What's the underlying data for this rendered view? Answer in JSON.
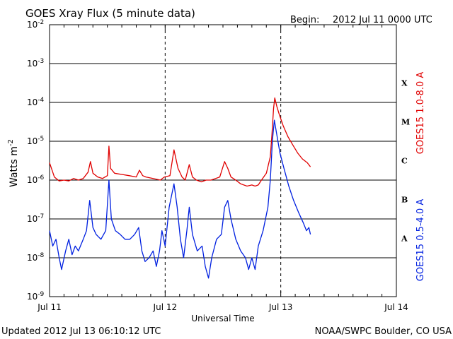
{
  "header": {
    "title": "GOES Xray Flux (5 minute data)",
    "begin_label": "Begin:",
    "begin_value": "2012 Jul 11 0000 UTC"
  },
  "footer": {
    "updated": "Updated 2012 Jul 13 06:10:12 UTC",
    "source": "NOAA/SWPC Boulder, CO USA"
  },
  "chart_data": {
    "type": "line",
    "title": "GOES Xray Flux (5 minute data)",
    "xlabel": "Universal Time",
    "ylabel": "Watts m",
    "ylabel_sup": "-2",
    "y_scale": "log",
    "ylim": [
      1e-09,
      0.01
    ],
    "xlim": [
      "2012-07-11T00:00",
      "2012-07-14T00:00"
    ],
    "grid": true,
    "x_ticks": [
      "Jul 11",
      "Jul 12",
      "Jul 13",
      "Jul 14"
    ],
    "y_ticks": [
      {
        "base": "10",
        "exp": "-9"
      },
      {
        "base": "10",
        "exp": "-8"
      },
      {
        "base": "10",
        "exp": "-7"
      },
      {
        "base": "10",
        "exp": "-6"
      },
      {
        "base": "10",
        "exp": "-5"
      },
      {
        "base": "10",
        "exp": "-4"
      },
      {
        "base": "10",
        "exp": "-3"
      },
      {
        "base": "10",
        "exp": "-2"
      }
    ],
    "flare_classes": [
      "X",
      "M",
      "C",
      "B",
      "A"
    ],
    "series": [
      {
        "name": "GOES15 1.0-8.0 A",
        "color": "#e00000",
        "points": [
          [
            "2012-07-11T00:00",
            2.8e-06
          ],
          [
            "2012-07-11T01:00",
            1.2e-06
          ],
          [
            "2012-07-11T02:00",
            9.5e-07
          ],
          [
            "2012-07-11T03:00",
            1e-06
          ],
          [
            "2012-07-11T04:00",
            9.5e-07
          ],
          [
            "2012-07-11T05:00",
            1.1e-06
          ],
          [
            "2012-07-11T06:00",
            1e-06
          ],
          [
            "2012-07-11T07:00",
            1.1e-06
          ],
          [
            "2012-07-11T08:00",
            1.6e-06
          ],
          [
            "2012-07-11T08:30",
            3e-06
          ],
          [
            "2012-07-11T09:00",
            1.5e-06
          ],
          [
            "2012-07-11T10:00",
            1.2e-06
          ],
          [
            "2012-07-11T11:00",
            1.1e-06
          ],
          [
            "2012-07-11T12:00",
            1.3e-06
          ],
          [
            "2012-07-11T12:20",
            7.5e-06
          ],
          [
            "2012-07-11T12:40",
            2e-06
          ],
          [
            "2012-07-11T13:30",
            1.5e-06
          ],
          [
            "2012-07-11T15:00",
            1.4e-06
          ],
          [
            "2012-07-11T16:30",
            1.3e-06
          ],
          [
            "2012-07-11T18:00",
            1.2e-06
          ],
          [
            "2012-07-11T18:40",
            1.8e-06
          ],
          [
            "2012-07-11T19:20",
            1.3e-06
          ],
          [
            "2012-07-11T20:00",
            1.2e-06
          ],
          [
            "2012-07-11T21:30",
            1.1e-06
          ],
          [
            "2012-07-11T23:00",
            1e-06
          ],
          [
            "2012-07-11T23:50",
            1.2e-06
          ],
          [
            "2012-07-12T01:00",
            1.3e-06
          ],
          [
            "2012-07-12T01:50",
            6e-06
          ],
          [
            "2012-07-12T02:40",
            2e-06
          ],
          [
            "2012-07-12T03:30",
            1.2e-06
          ],
          [
            "2012-07-12T04:10",
            1e-06
          ],
          [
            "2012-07-12T05:00",
            2.5e-06
          ],
          [
            "2012-07-12T05:40",
            1.2e-06
          ],
          [
            "2012-07-12T06:30",
            1e-06
          ],
          [
            "2012-07-12T07:30",
            9e-07
          ],
          [
            "2012-07-12T08:30",
            1e-06
          ],
          [
            "2012-07-12T09:30",
            1e-06
          ],
          [
            "2012-07-12T10:30",
            1.1e-06
          ],
          [
            "2012-07-12T11:20",
            1.2e-06
          ],
          [
            "2012-07-12T12:20",
            3e-06
          ],
          [
            "2012-07-12T13:00",
            2e-06
          ],
          [
            "2012-07-12T13:40",
            1.2e-06
          ],
          [
            "2012-07-12T14:40",
            1e-06
          ],
          [
            "2012-07-12T15:40",
            8e-07
          ],
          [
            "2012-07-12T17:00",
            7e-07
          ],
          [
            "2012-07-12T18:00",
            7.5e-07
          ],
          [
            "2012-07-12T18:40",
            7e-07
          ],
          [
            "2012-07-12T19:20",
            7.5e-07
          ],
          [
            "2012-07-12T20:00",
            1e-06
          ],
          [
            "2012-07-12T21:00",
            1.5e-06
          ],
          [
            "2012-07-12T21:50",
            4e-06
          ],
          [
            "2012-07-12T22:10",
            1.5e-05
          ],
          [
            "2012-07-12T22:30",
            7e-05
          ],
          [
            "2012-07-12T22:45",
            0.00013
          ],
          [
            "2012-07-12T23:10",
            8e-05
          ],
          [
            "2012-07-12T23:40",
            5e-05
          ],
          [
            "2012-07-13T00:30",
            2.5e-05
          ],
          [
            "2012-07-13T01:30",
            1.3e-05
          ],
          [
            "2012-07-13T02:30",
            8e-06
          ],
          [
            "2012-07-13T03:30",
            5e-06
          ],
          [
            "2012-07-13T04:30",
            3.5e-06
          ],
          [
            "2012-07-13T05:30",
            2.8e-06
          ],
          [
            "2012-07-13T06:10",
            2.2e-06
          ]
        ]
      },
      {
        "name": "GOES15 0.5-4.0 A",
        "color": "#0020e0",
        "points": [
          [
            "2012-07-11T00:00",
            5e-08
          ],
          [
            "2012-07-11T00:40",
            2e-08
          ],
          [
            "2012-07-11T01:20",
            3e-08
          ],
          [
            "2012-07-11T02:00",
            1e-08
          ],
          [
            "2012-07-11T02:30",
            5e-09
          ],
          [
            "2012-07-11T03:20",
            1.5e-08
          ],
          [
            "2012-07-11T04:00",
            3e-08
          ],
          [
            "2012-07-11T04:40",
            1.2e-08
          ],
          [
            "2012-07-11T05:20",
            2e-08
          ],
          [
            "2012-07-11T06:00",
            1.5e-08
          ],
          [
            "2012-07-11T07:00",
            3e-08
          ],
          [
            "2012-07-11T07:40",
            5e-08
          ],
          [
            "2012-07-11T08:20",
            3e-07
          ],
          [
            "2012-07-11T09:00",
            6e-08
          ],
          [
            "2012-07-11T09:40",
            4e-08
          ],
          [
            "2012-07-11T10:40",
            3e-08
          ],
          [
            "2012-07-11T11:40",
            5e-08
          ],
          [
            "2012-07-11T12:20",
            1e-06
          ],
          [
            "2012-07-11T12:50",
            1e-07
          ],
          [
            "2012-07-11T13:40",
            5e-08
          ],
          [
            "2012-07-11T14:40",
            4e-08
          ],
          [
            "2012-07-11T15:40",
            3e-08
          ],
          [
            "2012-07-11T16:40",
            3e-08
          ],
          [
            "2012-07-11T17:40",
            4e-08
          ],
          [
            "2012-07-11T18:30",
            6e-08
          ],
          [
            "2012-07-11T19:10",
            1.5e-08
          ],
          [
            "2012-07-11T19:50",
            8e-09
          ],
          [
            "2012-07-11T20:40",
            1e-08
          ],
          [
            "2012-07-11T21:30",
            1.5e-08
          ],
          [
            "2012-07-11T22:10",
            6e-09
          ],
          [
            "2012-07-11T22:50",
            1.5e-08
          ],
          [
            "2012-07-11T23:20",
            5e-08
          ],
          [
            "2012-07-12T00:00",
            2e-08
          ],
          [
            "2012-07-12T00:50",
            2e-07
          ],
          [
            "2012-07-12T01:50",
            8e-07
          ],
          [
            "2012-07-12T02:30",
            2e-07
          ],
          [
            "2012-07-12T03:10",
            3e-08
          ],
          [
            "2012-07-12T03:50",
            1e-08
          ],
          [
            "2012-07-12T04:30",
            5e-08
          ],
          [
            "2012-07-12T05:00",
            2e-07
          ],
          [
            "2012-07-12T05:40",
            4e-08
          ],
          [
            "2012-07-12T06:40",
            1.5e-08
          ],
          [
            "2012-07-12T07:40",
            2e-08
          ],
          [
            "2012-07-12T08:20",
            6e-09
          ],
          [
            "2012-07-12T09:00",
            3e-09
          ],
          [
            "2012-07-12T09:40",
            1e-08
          ],
          [
            "2012-07-12T10:40",
            3e-08
          ],
          [
            "2012-07-12T11:40",
            4e-08
          ],
          [
            "2012-07-12T12:20",
            2e-07
          ],
          [
            "2012-07-12T13:00",
            3e-07
          ],
          [
            "2012-07-12T13:40",
            1e-07
          ],
          [
            "2012-07-12T14:40",
            3e-08
          ],
          [
            "2012-07-12T15:40",
            1.5e-08
          ],
          [
            "2012-07-12T16:40",
            1e-08
          ],
          [
            "2012-07-12T17:20",
            5e-09
          ],
          [
            "2012-07-12T18:00",
            1e-08
          ],
          [
            "2012-07-12T18:40",
            5e-09
          ],
          [
            "2012-07-12T19:20",
            2e-08
          ],
          [
            "2012-07-12T20:20",
            5e-08
          ],
          [
            "2012-07-12T21:20",
            2e-07
          ],
          [
            "2012-07-12T21:50",
            1e-06
          ],
          [
            "2012-07-12T22:15",
            1e-05
          ],
          [
            "2012-07-12T22:40",
            3.5e-05
          ],
          [
            "2012-07-12T23:10",
            1.5e-05
          ],
          [
            "2012-07-12T23:50",
            5e-06
          ],
          [
            "2012-07-13T00:40",
            2e-06
          ],
          [
            "2012-07-13T01:40",
            7e-07
          ],
          [
            "2012-07-13T02:40",
            3e-07
          ],
          [
            "2012-07-13T03:40",
            1.5e-07
          ],
          [
            "2012-07-13T04:40",
            8e-08
          ],
          [
            "2012-07-13T05:20",
            5e-08
          ],
          [
            "2012-07-13T05:50",
            6e-08
          ],
          [
            "2012-07-13T06:10",
            4e-08
          ]
        ]
      }
    ]
  }
}
